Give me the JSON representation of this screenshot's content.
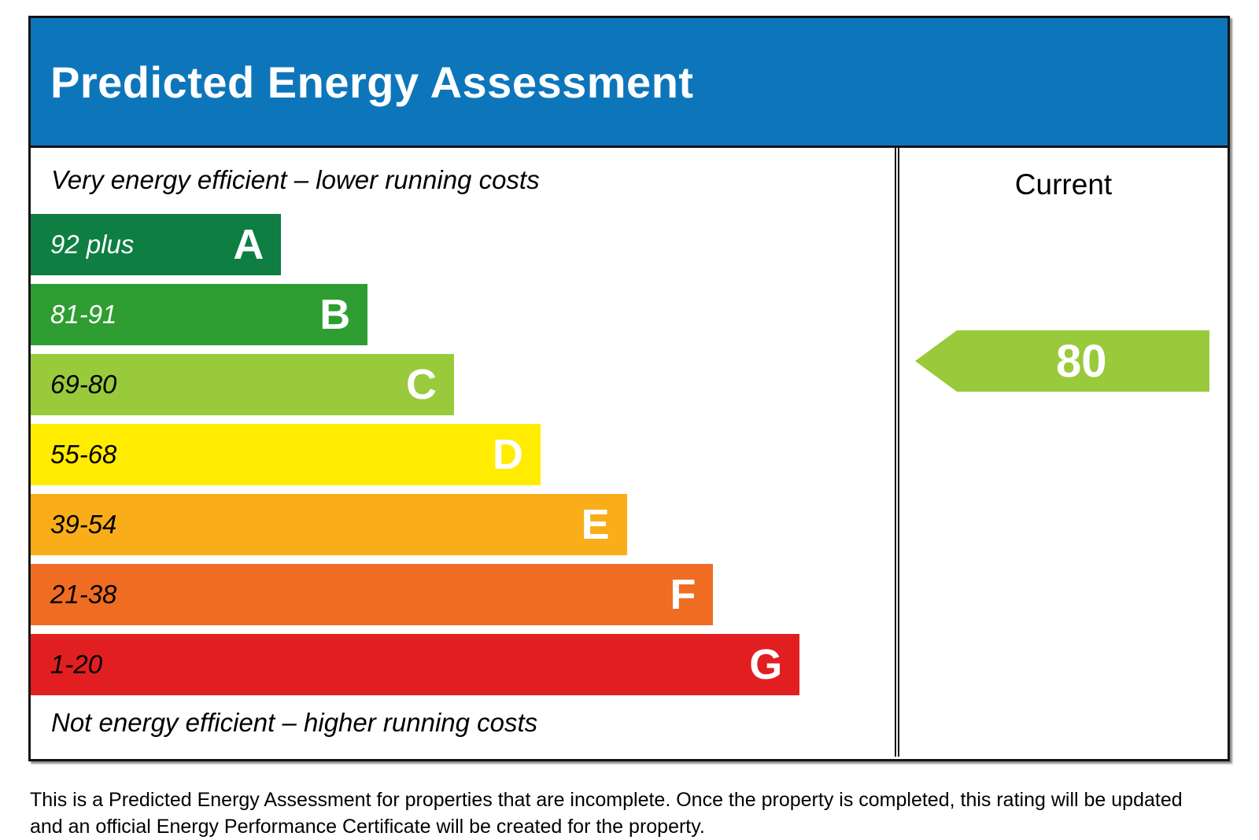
{
  "header": {
    "title": "Predicted Energy Assessment",
    "bg_color": "#0d76bb"
  },
  "chart": {
    "top_caption": "Very energy efficient – lower running costs",
    "bottom_caption": "Not energy efficient – higher running costs",
    "bands": [
      {
        "range": "92 plus",
        "letter": "A",
        "color": "#0e7e43",
        "width_pct": 29,
        "range_text_color": "#ffffff"
      },
      {
        "range": "81-91",
        "letter": "B",
        "color": "#2e9d32",
        "width_pct": 39,
        "range_text_color": "#ffffff"
      },
      {
        "range": "69-80",
        "letter": "C",
        "color": "#99ca3c",
        "width_pct": 49,
        "range_text_color": "#000000"
      },
      {
        "range": "55-68",
        "letter": "D",
        "color": "#ffec00",
        "width_pct": 59,
        "range_text_color": "#000000"
      },
      {
        "range": "39-54",
        "letter": "E",
        "color": "#f9ae19",
        "width_pct": 69,
        "range_text_color": "#000000"
      },
      {
        "range": "21-38",
        "letter": "F",
        "color": "#ee6d23",
        "width_pct": 79,
        "range_text_color": "#000000"
      },
      {
        "range": "1-20",
        "letter": "G",
        "color": "#e11f21",
        "width_pct": 89,
        "range_text_color": "#000000"
      }
    ]
  },
  "current": {
    "label": "Current",
    "value": "80",
    "arrow_color": "#99ca3c"
  },
  "footer_note": "This is a Predicted Energy Assessment for properties that are incomplete. Once the property is completed, this rating will be updated and an official Energy Performance Certificate will be created for the property.",
  "chart_data": {
    "type": "bar",
    "title": "Predicted Energy Assessment",
    "orientation": "horizontal",
    "categories": [
      "A",
      "B",
      "C",
      "D",
      "E",
      "F",
      "G"
    ],
    "category_ranges": [
      "92 plus",
      "81-91",
      "69-80",
      "55-68",
      "39-54",
      "21-38",
      "1-20"
    ],
    "bar_length_pct": [
      29,
      39,
      49,
      59,
      69,
      79,
      89
    ],
    "bar_colors": [
      "#0e7e43",
      "#2e9d32",
      "#99ca3c",
      "#ffec00",
      "#f9ae19",
      "#ee6d23",
      "#e11f21"
    ],
    "top_axis_caption": "Very energy efficient – lower running costs",
    "bottom_axis_caption": "Not energy efficient – higher running costs",
    "series": [
      {
        "name": "Current",
        "value": 80,
        "band": "C",
        "marker_color": "#99ca3c"
      }
    ],
    "legend_position": "right-column",
    "grid": false
  }
}
